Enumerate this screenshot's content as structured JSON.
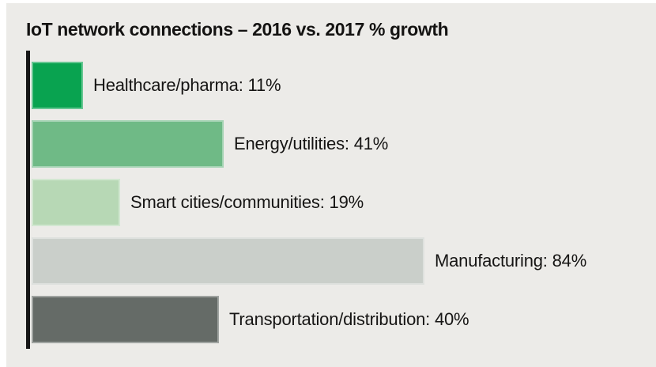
{
  "page": {
    "background": "#ffffff",
    "panel_background": "#ecebe8",
    "text_color": "#161514",
    "axis_color": "#171717"
  },
  "chart_data": {
    "type": "bar",
    "orientation": "horizontal",
    "title": "IoT network connections – 2016 vs. 2017 % growth",
    "categories": [
      "Healthcare/pharma",
      "Energy/utilities",
      "Smart cities/communities",
      "Manufacturing",
      "Transportation/distribution"
    ],
    "values": [
      11,
      41,
      19,
      84,
      40
    ],
    "value_suffix": "%",
    "bar_colors": [
      "#09a350",
      "#6fba86",
      "#b7d8b5",
      "#cacfca",
      "#656b67"
    ],
    "label_position": "right-of-bar",
    "legend": "none",
    "gridlines": false,
    "tick_labels": false,
    "axis_baseline": "left"
  }
}
